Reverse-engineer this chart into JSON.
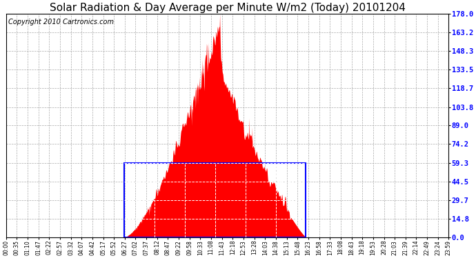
{
  "title": "Solar Radiation & Day Average per Minute W/m2 (Today) 20101204",
  "copyright": "Copyright 2010 Cartronics.com",
  "yticks": [
    0.0,
    14.8,
    29.7,
    44.5,
    59.3,
    74.2,
    89.0,
    103.8,
    118.7,
    133.5,
    148.3,
    163.2,
    178.0
  ],
  "ymax": 178.0,
  "ymin": 0.0,
  "bar_color": "#FF0000",
  "bg_color": "#FFFFFF",
  "grid_color": "#AAAAAA",
  "box_color": "#0000FF",
  "title_fontsize": 11,
  "copyright_fontsize": 7,
  "total_minutes": 1440,
  "sunrise_minute": 385,
  "sunset_minute": 975,
  "peak_minute": 695,
  "day_avg": 59.3,
  "x_tick_labels": [
    "00:00",
    "00:35",
    "01:10",
    "01:47",
    "02:22",
    "02:57",
    "03:32",
    "04:07",
    "04:42",
    "05:17",
    "05:52",
    "06:27",
    "07:02",
    "07:37",
    "08:12",
    "08:47",
    "09:22",
    "09:58",
    "10:33",
    "11:08",
    "11:43",
    "12:18",
    "12:53",
    "13:28",
    "14:03",
    "14:38",
    "15:13",
    "15:48",
    "16:23",
    "16:58",
    "17:33",
    "18:08",
    "18:43",
    "19:18",
    "19:53",
    "20:28",
    "21:03",
    "21:39",
    "22:14",
    "22:49",
    "23:24",
    "23:59"
  ]
}
